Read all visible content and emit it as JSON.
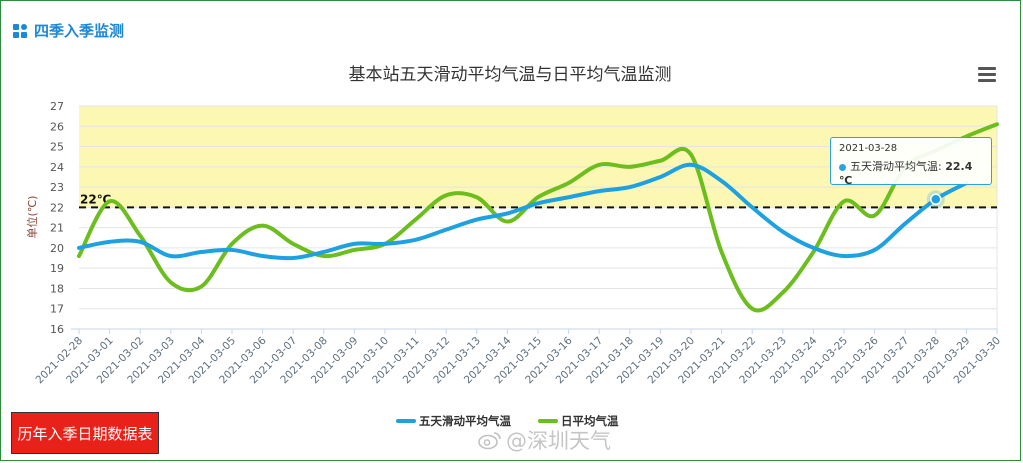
{
  "header": {
    "title": "四季入季监测",
    "icon": "grid-icon"
  },
  "chart_data": {
    "type": "line",
    "title": "基本站五天滑动平均气温与日平均气温监测",
    "ylabel": "单位(℃)",
    "ylim": [
      16,
      27
    ],
    "yticks": [
      16,
      17,
      18,
      19,
      20,
      21,
      22,
      23,
      24,
      25,
      26,
      27
    ],
    "categories": [
      "2021-02-28",
      "2021-03-01",
      "2021-03-02",
      "2021-03-03",
      "2021-03-04",
      "2021-03-05",
      "2021-03-06",
      "2021-03-07",
      "2021-03-08",
      "2021-03-09",
      "2021-03-10",
      "2021-03-11",
      "2021-03-12",
      "2021-03-13",
      "2021-03-14",
      "2021-03-15",
      "2021-03-16",
      "2021-03-17",
      "2021-03-18",
      "2021-03-19",
      "2021-03-20",
      "2021-03-21",
      "2021-03-22",
      "2021-03-23",
      "2021-03-24",
      "2021-03-25",
      "2021-03-26",
      "2021-03-27",
      "2021-03-28",
      "2021-03-29",
      "2021-03-30"
    ],
    "series": [
      {
        "name": "五天滑动平均气温",
        "color": "#1ea1e0",
        "values": [
          20.0,
          20.3,
          20.3,
          19.6,
          19.8,
          19.9,
          19.6,
          19.5,
          19.8,
          20.2,
          20.2,
          20.4,
          20.9,
          21.4,
          21.7,
          22.2,
          22.5,
          22.8,
          23.0,
          23.5,
          24.1,
          23.3,
          22.0,
          20.8,
          20.0,
          19.6,
          19.9,
          21.2,
          22.4,
          23.2,
          null
        ]
      },
      {
        "name": "日平均气温",
        "color": "#6cbd1e",
        "values": [
          19.6,
          22.3,
          20.6,
          18.3,
          18.1,
          20.2,
          21.1,
          20.2,
          19.6,
          19.9,
          20.2,
          21.4,
          22.6,
          22.5,
          21.3,
          22.5,
          23.2,
          24.1,
          24.0,
          24.3,
          24.6,
          19.8,
          17.0,
          17.8,
          19.8,
          22.3,
          21.6,
          24.0,
          24.8,
          25.5,
          26.1
        ]
      }
    ],
    "warm_band": {
      "from": 22,
      "to": 27,
      "color": "#fcf8b4"
    },
    "threshold": {
      "value": 22,
      "label": "22℃"
    },
    "grid": true,
    "legend": "bottom-center"
  },
  "tooltip": {
    "date": "2021-03-28",
    "series": "五天滑动平均气温",
    "value": "22.4 ℃",
    "index": 28
  },
  "menu": {
    "icon": "hamburger-menu-icon"
  },
  "history_button": {
    "label": "历年入季日期数据表"
  },
  "watermark": {
    "text": "@深圳天气"
  }
}
